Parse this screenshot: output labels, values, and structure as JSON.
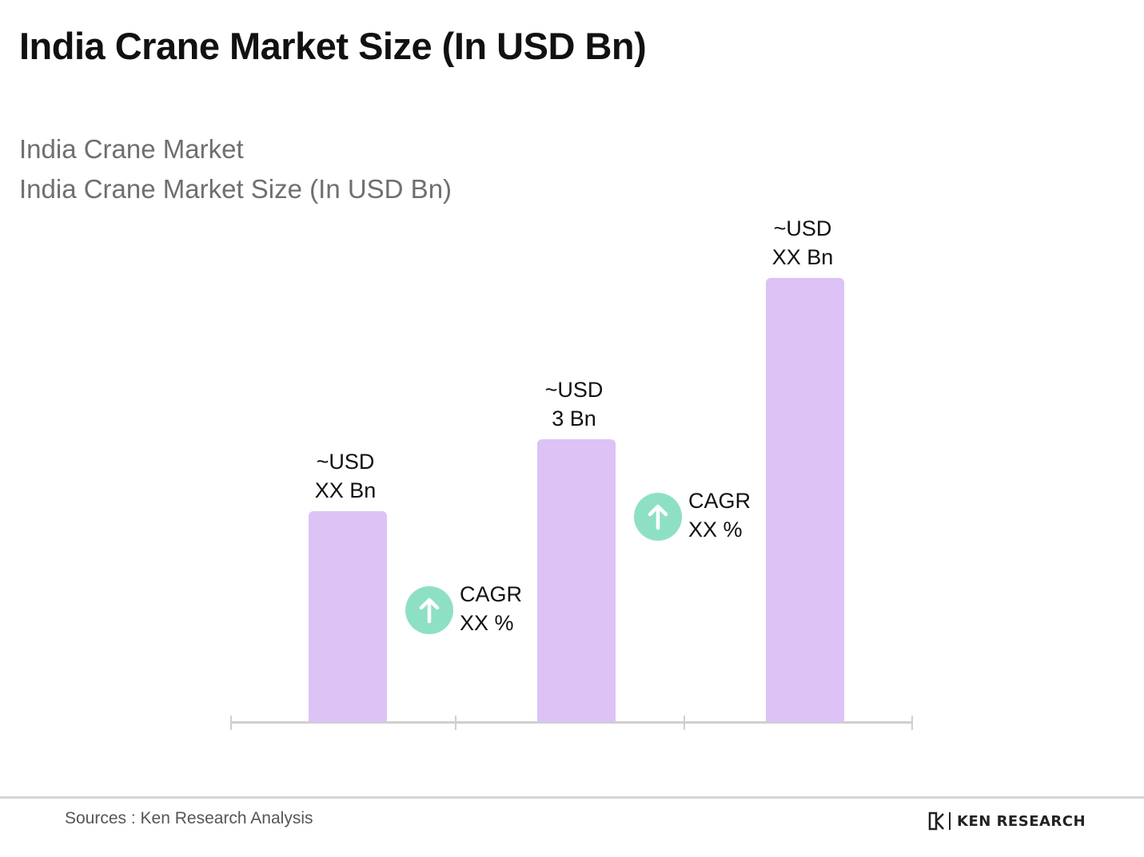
{
  "title": "India Crane Market Size (In USD Bn)",
  "subtitle_lines": [
    "India Crane Market",
    "India Crane Market Size (In USD Bn)"
  ],
  "chart_data": {
    "type": "bar",
    "title": "India Crane Market Size (In USD Bn)",
    "categories": [
      "",
      "",
      ""
    ],
    "value_labels": [
      {
        "line1": "~USD",
        "line2": "XX Bn"
      },
      {
        "line1": "~USD",
        "line2": "3 Bn"
      },
      {
        "line1": "~USD",
        "line2": "XX Bn"
      }
    ],
    "values": [
      null,
      3,
      null
    ],
    "relative_heights": [
      0.47,
      0.63,
      0.99
    ],
    "bar_color": "#dcc2f5",
    "axis_color": "#cfcfcf",
    "annotations": [
      {
        "type": "cagr",
        "line1": "CAGR",
        "line2": "XX %",
        "between": [
          0,
          1
        ]
      },
      {
        "type": "cagr",
        "line1": "CAGR",
        "line2": "XX %",
        "between": [
          1,
          2
        ]
      }
    ],
    "cagr_icon_color": "#8ee0c4",
    "cagr_icon": "arrow-up-icon",
    "grid": false,
    "legend": "none"
  },
  "footer": {
    "source": "Sources : Ken Research Analysis",
    "logo_icon": "ken-research-logo-icon",
    "logo_text": "KEN RESEARCH"
  }
}
